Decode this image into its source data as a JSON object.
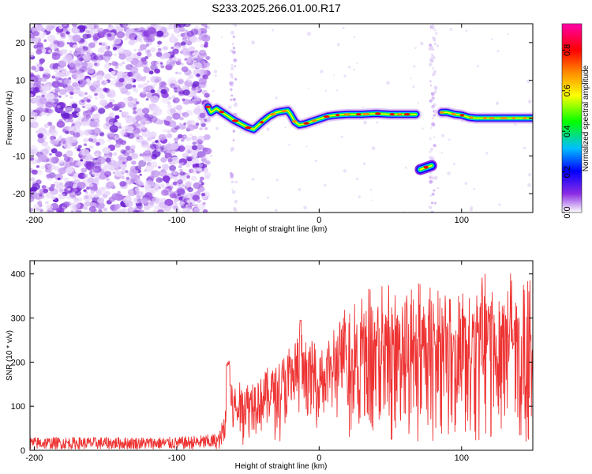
{
  "title": "S233.2025.266.01.00.R17",
  "chart_data": [
    {
      "type": "heatmap",
      "title": "S233.2025.266.01.00.R17",
      "xlabel": "Height of straight line (km)",
      "ylabel": "Frequency (Hz)",
      "xlim": [
        -203,
        150
      ],
      "ylim": [
        -25,
        25
      ],
      "xticks": [
        -200,
        -100,
        0,
        100
      ],
      "yticks": [
        -20,
        -10,
        0,
        10,
        20
      ],
      "colorbar": {
        "label": "Normalized spectral amplitude",
        "range": [
          0,
          0.93
        ],
        "ticks": [
          "0.0",
          "0.2",
          "0.4",
          "0.6",
          "0.8"
        ],
        "colors": [
          "#ffffff",
          "#8a2be2",
          "#0000ff",
          "#00bfff",
          "#00ff00",
          "#ffff00",
          "#ff8c00",
          "#ff0000",
          "#ff00aa"
        ]
      },
      "ridge": {
        "x": [
          -78,
          -76,
          -72,
          -68,
          -64,
          -60,
          -55,
          -50,
          -46,
          -43,
          -40,
          -35,
          -30,
          -26,
          -22,
          -20,
          -17,
          -14,
          -10,
          -6,
          -2,
          2,
          6,
          12,
          20,
          30,
          40,
          50,
          60,
          68
        ],
        "y": [
          3,
          1.5,
          2.5,
          1.5,
          0.5,
          -0.5,
          -1.5,
          -2.5,
          -3,
          -2,
          -1,
          0.5,
          1.5,
          1.8,
          2,
          1,
          -1,
          -1.8,
          -1.5,
          -1,
          -0.5,
          0,
          0.5,
          0.8,
          1.0,
          1.0,
          1.2,
          1.0,
          1.0,
          1.0
        ]
      },
      "ridge2": {
        "x": [
          86,
          90,
          95,
          100,
          105,
          110,
          120,
          130,
          140,
          150
        ],
        "y": [
          1.5,
          1.5,
          1.0,
          0.8,
          0.2,
          0,
          0,
          0,
          0,
          0
        ]
      },
      "isolated_patch": {
        "x": [
          71,
          79
        ],
        "y": [
          -14,
          -12
        ]
      }
    },
    {
      "type": "line",
      "title": "",
      "xlabel": "Height of straight line (km)",
      "ylabel": "SNR (10 * v/v)",
      "xlim": [
        -203,
        150
      ],
      "ylim": [
        0,
        430
      ],
      "xticks": [
        -200,
        -100,
        0,
        100
      ],
      "yticks": [
        0,
        100,
        200,
        300,
        400
      ],
      "color": "#ee3333",
      "envelope": {
        "x": [
          -203,
          -150,
          -100,
          -80,
          -70,
          -66,
          -63,
          -60,
          -50,
          -40,
          -30,
          -20,
          -13,
          -10,
          0,
          10,
          15,
          18,
          20,
          25,
          30,
          40,
          60,
          80,
          100,
          120,
          150
        ],
        "base": [
          8,
          8,
          8,
          8,
          10,
          20,
          40,
          30,
          40,
          50,
          60,
          70,
          60,
          80,
          100,
          110,
          130,
          150,
          160,
          170,
          150,
          140,
          130,
          120,
          130,
          140,
          150
        ],
        "peak": [
          30,
          30,
          30,
          35,
          40,
          100,
          200,
          150,
          170,
          190,
          220,
          250,
          300,
          270,
          260,
          290,
          320,
          340,
          360,
          380,
          390,
          390,
          395,
          400,
          405,
          410,
          415
        ]
      }
    }
  ]
}
